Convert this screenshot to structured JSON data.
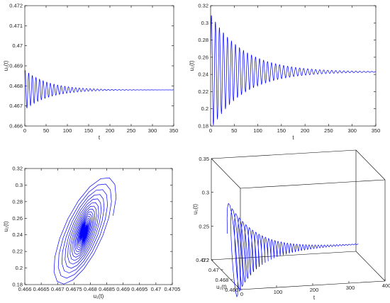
{
  "chart_data": [
    {
      "id": "p1",
      "type": "line",
      "xlabel": "t",
      "ylabel": "u₁(t)",
      "xlim": [
        0,
        350
      ],
      "ylim": [
        0.466,
        0.472
      ],
      "xticks": [
        0,
        50,
        100,
        150,
        200,
        250,
        300,
        350
      ],
      "yticks": [
        0.466,
        0.467,
        0.468,
        0.469,
        0.47,
        0.471,
        0.472
      ],
      "ytick_labels": [
        "0.466",
        "0.467",
        "0.468",
        "0.469",
        "0.47",
        "0.471",
        "0.472"
      ],
      "series": [
        {
          "equilibrium": 0.4678,
          "initial_amplitude": 0.001,
          "oscillation_period_t": 8.5,
          "settled_by_t": 200,
          "t_range": [
            0,
            350
          ]
        }
      ]
    },
    {
      "id": "p2",
      "type": "line",
      "xlabel": "t",
      "ylabel": "u₂(t)",
      "xlim": [
        0,
        350
      ],
      "ylim": [
        0.18,
        0.32
      ],
      "xticks": [
        0,
        50,
        100,
        150,
        200,
        250,
        300,
        350
      ],
      "yticks": [
        0.18,
        0.2,
        0.22,
        0.24,
        0.26,
        0.28,
        0.3,
        0.32
      ],
      "ytick_labels": [
        "0.18",
        "0.2",
        "0.22",
        "0.24",
        "0.26",
        "0.28",
        "0.3",
        "0.32"
      ],
      "series": [
        {
          "equilibrium": 0.243,
          "initial_amplitude": 0.068,
          "oscillation_period_t": 8.5,
          "settled_by_t": 280,
          "t_range": [
            0,
            350
          ]
        }
      ]
    },
    {
      "id": "p3",
      "type": "line",
      "xlabel": "u₁(t)",
      "ylabel": "u₂(t)",
      "xlim": [
        0.466,
        0.4705
      ],
      "ylim": [
        0.18,
        0.32
      ],
      "xticks": [
        0.466,
        0.4665,
        0.467,
        0.4675,
        0.468,
        0.4685,
        0.469,
        0.4695,
        0.47,
        0.4705
      ],
      "xtick_labels": [
        "0.466",
        "0.4665",
        "0.467",
        "0.4675",
        "0.468",
        "0.4685",
        "0.469",
        "0.4695",
        "0.47",
        "0.4705"
      ],
      "yticks": [
        0.18,
        0.2,
        0.22,
        0.24,
        0.26,
        0.28,
        0.3,
        0.32
      ],
      "ytick_labels": [
        "0.18",
        "0.2",
        "0.22",
        "0.24",
        "0.26",
        "0.28",
        "0.3",
        "0.32"
      ],
      "series": [
        {
          "center": [
            0.4677,
            0.243
          ],
          "u1_range": [
            0.4661,
            0.4699
          ],
          "u2_range": [
            0.18,
            0.308
          ]
        }
      ]
    },
    {
      "id": "p4",
      "type": "line",
      "xlabel": "t",
      "ylabel": "u₁(t)",
      "zlabel": "u₂(t)",
      "xlim": [
        0,
        400
      ],
      "ylim": [
        0.466,
        0.472
      ],
      "zlim": [
        0.2,
        0.35
      ],
      "xticks": [
        0,
        100,
        200,
        300,
        400
      ],
      "yticks": [
        0.466,
        0.468,
        0.47,
        0.472
      ],
      "ytick_labels": [
        "0.466",
        "0.468",
        "0.47",
        "0.472"
      ],
      "zticks": [
        0.2,
        0.25,
        0.3,
        0.35
      ],
      "ztick_labels": [
        "0.2",
        "0.25",
        "0.3",
        "0.35"
      ],
      "series": [
        {
          "t_range": [
            0,
            350
          ],
          "u1_equilibrium": 0.4678,
          "u2_equilibrium": 0.243
        }
      ]
    }
  ]
}
